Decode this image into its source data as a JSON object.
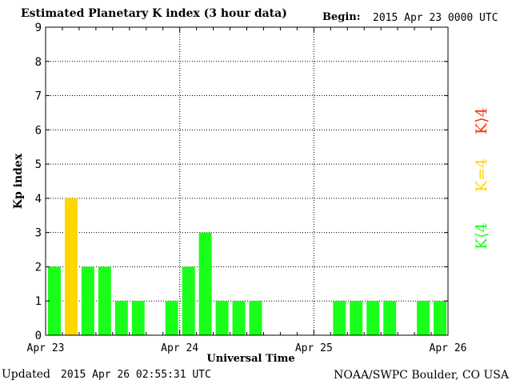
{
  "header": {
    "title": "Estimated Planetary K index (3 hour data)",
    "begin_label": "Begin:",
    "begin_value": "2015 Apr 23 0000 UTC"
  },
  "footer": {
    "updated_label": "Updated",
    "updated_value": "2015 Apr 26 02:55:31 UTC",
    "credit": "NOAA/SWPC Boulder, CO USA"
  },
  "legend": {
    "high": "K⟩4",
    "equal": "K=4",
    "low": "K⟨4"
  },
  "colors": {
    "low": "#1aff1a",
    "equal": "#ffd700",
    "high": "#ff3010"
  },
  "chart_data": {
    "type": "bar",
    "xlabel": "Universal Time",
    "ylabel": "Kp index",
    "ylim": [
      0,
      9
    ],
    "yticks": [
      "0",
      "1",
      "2",
      "3",
      "4",
      "5",
      "6",
      "7",
      "8",
      "9"
    ],
    "xtick_labels": [
      "Apr 23",
      "Apr 24",
      "Apr 25",
      "Apr 26"
    ],
    "grid": true,
    "interval_hours": 3,
    "values": [
      2,
      4,
      2,
      2,
      1,
      1,
      null,
      1,
      2,
      3,
      1,
      1,
      1,
      null,
      null,
      null,
      null,
      1,
      1,
      1,
      1,
      null,
      1,
      1
    ]
  }
}
